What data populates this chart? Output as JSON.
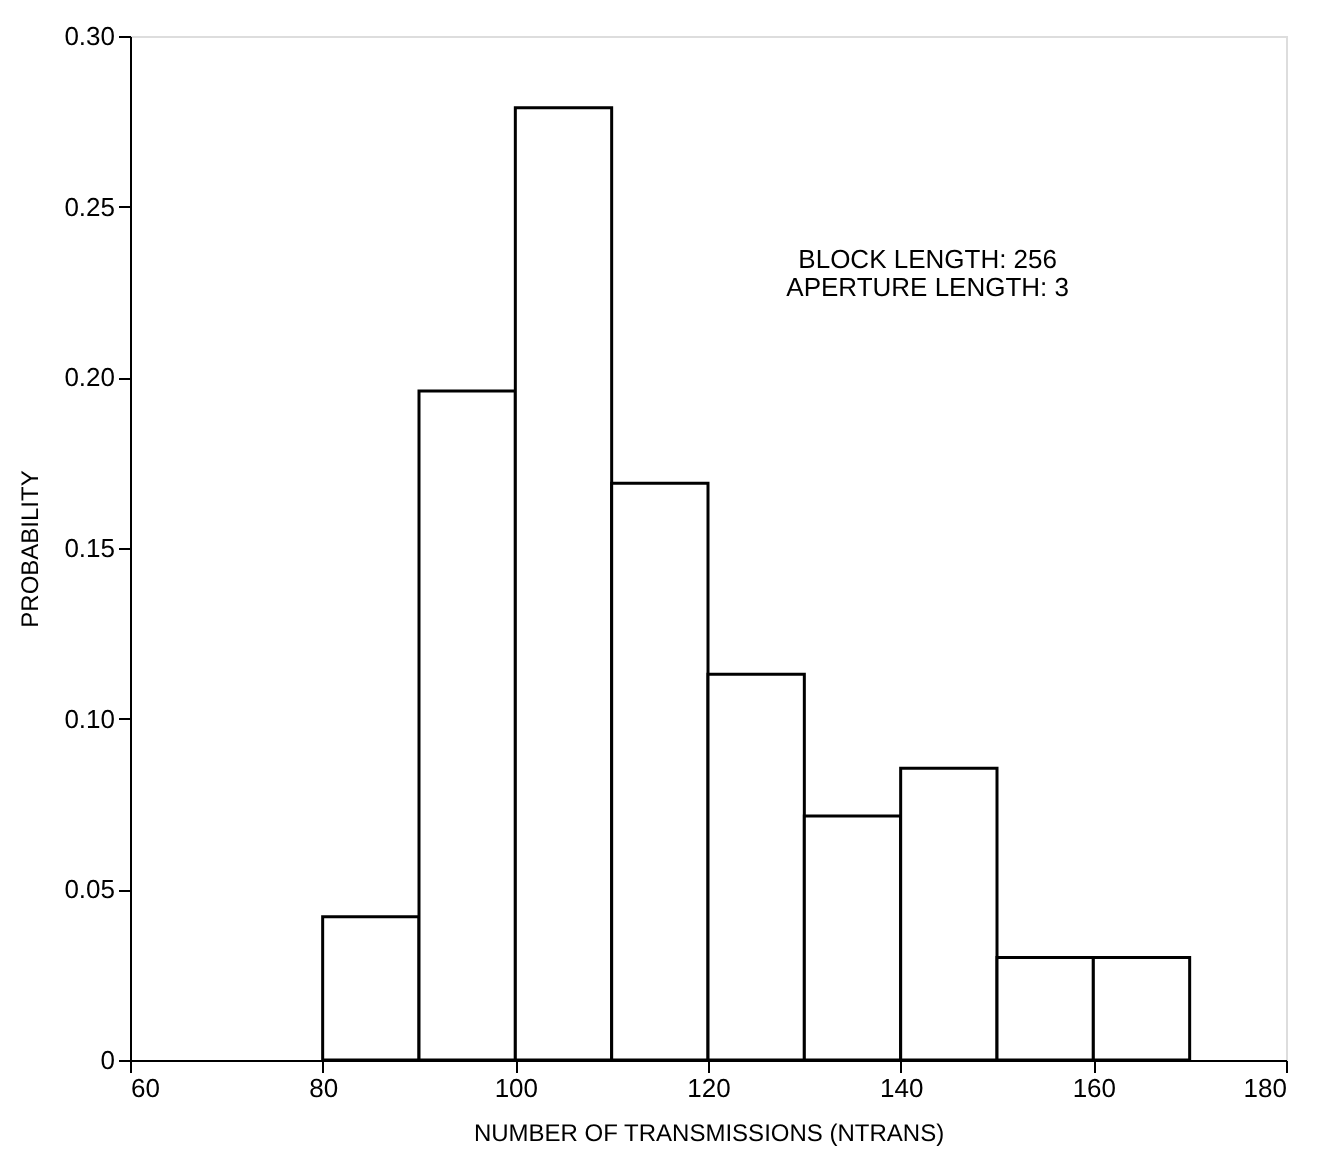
{
  "chart_data": {
    "type": "histogram",
    "xlabel": "NUMBER OF TRANSMISSIONS (NTRANS)",
    "ylabel": "PROBABILITY",
    "bins": [
      80,
      90,
      100,
      110,
      120,
      130,
      140,
      150,
      160,
      170
    ],
    "values": [
      0.042,
      0.196,
      0.279,
      0.169,
      0.113,
      0.0715,
      0.0855,
      0.03,
      0.03
    ],
    "color": "#ffffff",
    "xlim": [
      60,
      180
    ],
    "xticks": [
      60,
      80,
      100,
      120,
      140,
      160,
      180
    ],
    "ylim": [
      0,
      0.3
    ],
    "yticks": [
      {
        "value": 0,
        "label": "0"
      },
      {
        "value": 0.05,
        "label": "0.05"
      },
      {
        "value": 0.1,
        "label": "0.10"
      },
      {
        "value": 0.15,
        "label": "0.15"
      },
      {
        "value": 0.2,
        "label": "0.20"
      },
      {
        "value": 0.25,
        "label": "0.25"
      },
      {
        "value": 0.3,
        "label": "0.30"
      }
    ],
    "grid": false,
    "annotations": [
      "BLOCK LENGTH: 256",
      "APERTURE LENGTH: 3"
    ]
  }
}
